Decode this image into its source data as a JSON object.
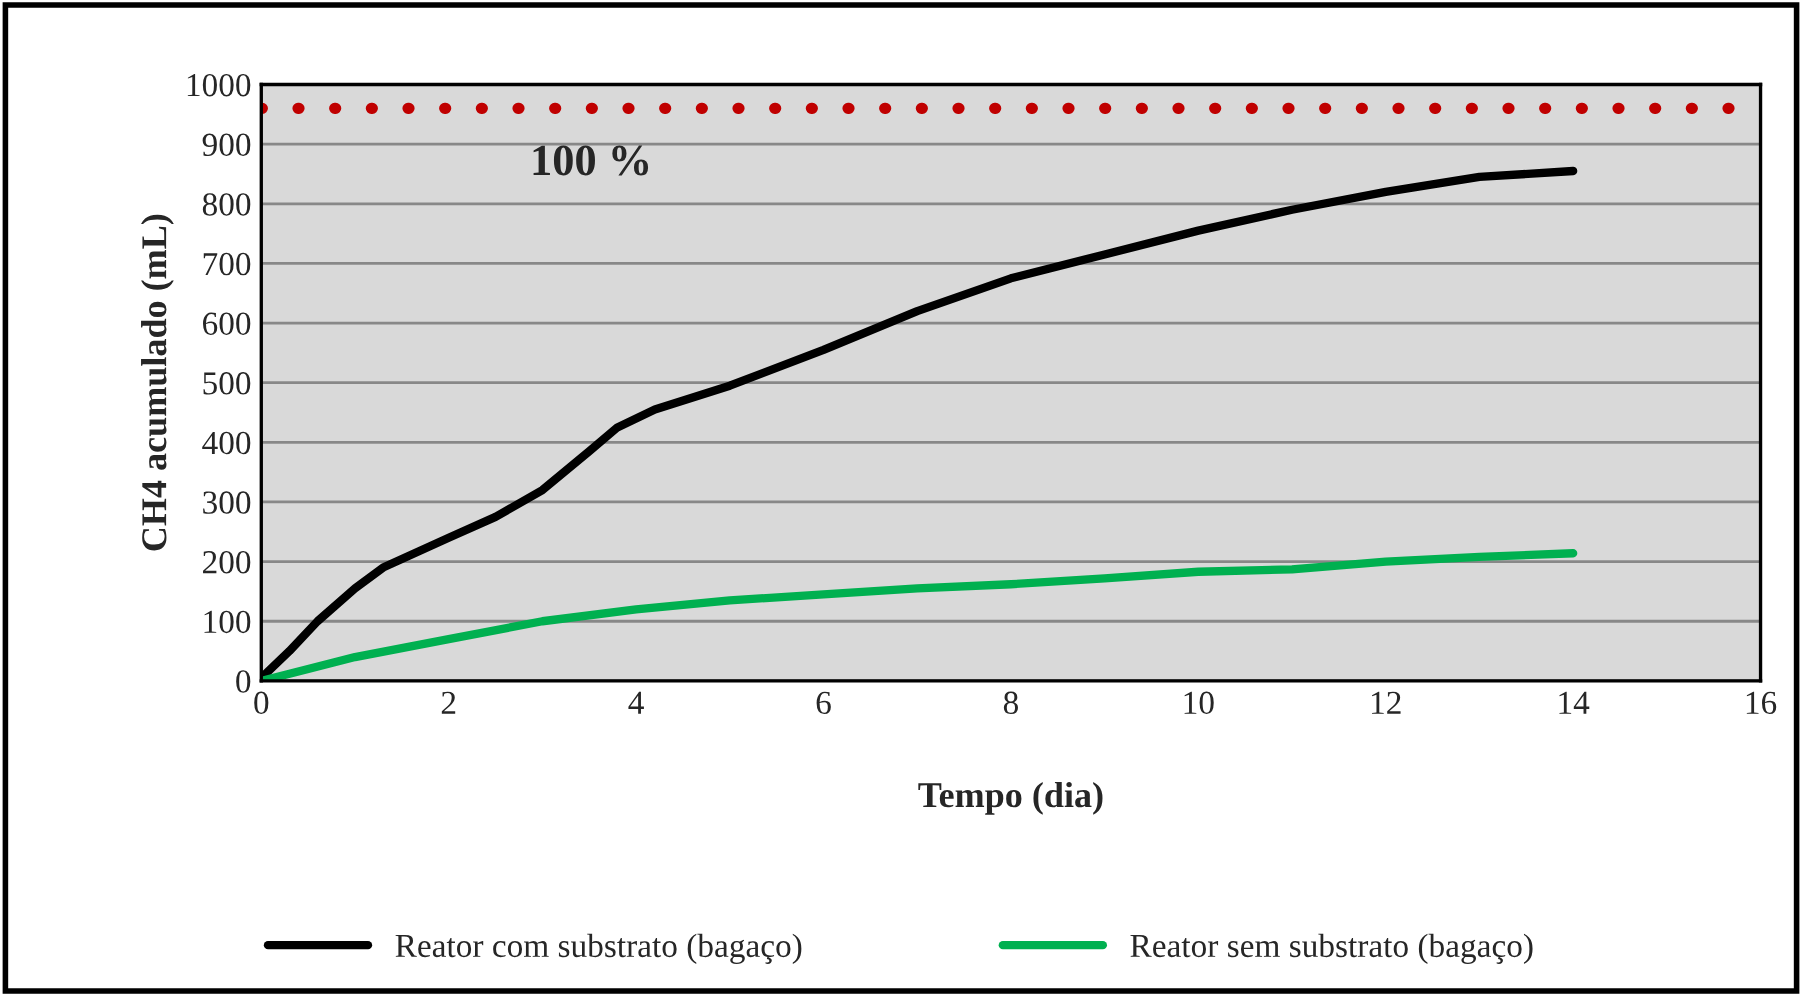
{
  "chart_data": {
    "type": "line",
    "xlabel": "Tempo (dia)",
    "ylabel": "CH4 acumulado (mL)",
    "series": [
      {
        "name": "Reator com substrato (bagaço)",
        "color": "#000000",
        "x": [
          0,
          0.3,
          0.6,
          1,
          1.3,
          2,
          2.5,
          3,
          3.5,
          3.8,
          4.2,
          5,
          6,
          7,
          8,
          9,
          10,
          11,
          12,
          13,
          14
        ],
        "values": [
          5,
          50,
          100,
          155,
          190,
          240,
          275,
          320,
          385,
          425,
          455,
          495,
          555,
          620,
          675,
          715,
          755,
          790,
          820,
          845,
          855
        ]
      },
      {
        "name": "Reator sem substrato (bagaço)",
        "color": "#00b050",
        "x": [
          0,
          0.5,
          1,
          2,
          3,
          4,
          5,
          6,
          7,
          8,
          9,
          10,
          11,
          12,
          13,
          14
        ],
        "values": [
          0,
          20,
          40,
          70,
          100,
          120,
          135,
          145,
          155,
          162,
          172,
          183,
          187,
          200,
          208,
          214
        ]
      }
    ],
    "xlim": [
      0,
      16
    ],
    "xticks": [
      0,
      2,
      4,
      6,
      8,
      10,
      12,
      14,
      16
    ],
    "ylim": [
      0,
      1000
    ],
    "yticks": [
      0,
      100,
      200,
      300,
      400,
      500,
      600,
      700,
      800,
      900,
      1000
    ],
    "grid": "y",
    "legend": "bottom",
    "marker": "none",
    "line_style": "solid",
    "annotations": [
      "100 %"
    ],
    "ref_lines": [
      {
        "axis": "y",
        "value": 960,
        "color": "#c00000",
        "line_style": "dotted"
      }
    ]
  }
}
